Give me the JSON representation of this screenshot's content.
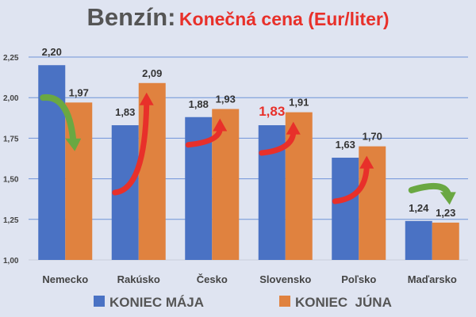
{
  "chart_data": {
    "type": "bar",
    "title": "Benzín:",
    "subtitle": "Konečná cena (Eur/liter)",
    "categories": [
      "Nemecko",
      "Rakúsko",
      "Česko",
      "Slovensko",
      "Poľsko",
      "Maďarsko"
    ],
    "series": [
      {
        "name": "KONIEC MÁJA",
        "color": "#4a72c4",
        "values": [
          2.2,
          1.83,
          1.88,
          1.83,
          1.63,
          1.24
        ],
        "labels": [
          "2,20",
          "1,83",
          "1,88",
          "1,83",
          "1,63",
          "1,24"
        ]
      },
      {
        "name": "KONIEC  JÚNA",
        "color": "#e0823f",
        "values": [
          1.97,
          2.09,
          1.93,
          1.91,
          1.7,
          1.23
        ],
        "labels": [
          "1,97",
          "2,09",
          "1,93",
          "1,91",
          "1,70",
          "1,23"
        ]
      }
    ],
    "ylim": [
      1.0,
      2.25
    ],
    "yticks": [
      "1,00",
      "1,25",
      "1,50",
      "1,75",
      "2,00",
      "2,25"
    ],
    "grid": true,
    "legend": "bottom",
    "highlight": {
      "category": "Slovensko",
      "color": "#e8302a"
    },
    "arrows": {
      "down_color": "#6aa842",
      "up_color": "#e8302a",
      "directions": [
        "down",
        "up",
        "up",
        "up",
        "up",
        "down"
      ]
    }
  }
}
